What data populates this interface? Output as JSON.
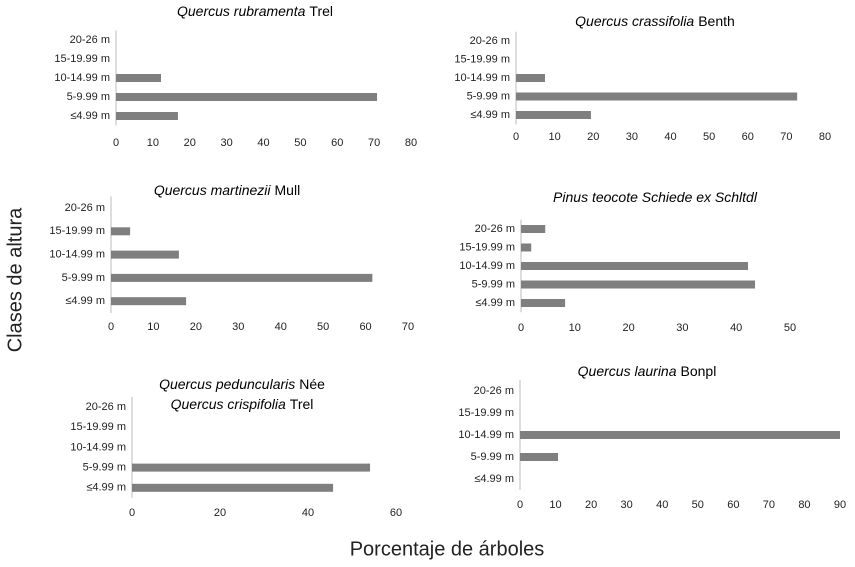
{
  "chart_data": [
    {
      "type": "barh",
      "title": [
        [
          {
            "text": "Quercus rubramenta",
            "italic": true
          },
          {
            "text": "Trel",
            "italic": false
          }
        ]
      ],
      "categories": [
        "20-26 m",
        "15-19.99 m",
        "10-14.99 m",
        "5-9.99 m",
        "≤4.99 m"
      ],
      "values": [
        0,
        0,
        12.2,
        70.8,
        16.8
      ],
      "color": "#7f7f7f",
      "xlim": [
        0,
        80
      ],
      "xticks": [
        0,
        10,
        20,
        30,
        40,
        50,
        60,
        70,
        80
      ]
    },
    {
      "type": "barh",
      "title": [
        [
          {
            "text": "Quercus crassifolia",
            "italic": true
          },
          {
            "text": "Benth",
            "italic": false
          }
        ]
      ],
      "categories": [
        "20-26 m",
        "15-19.99 m",
        "10-14.99 m",
        "5-9.99 m",
        "≤4.99 m"
      ],
      "values": [
        0,
        0,
        7.5,
        72.8,
        19.4
      ],
      "color": "#7f7f7f",
      "xlim": [
        0,
        80
      ],
      "xticks": [
        0,
        10,
        20,
        30,
        40,
        50,
        60,
        70,
        80
      ]
    },
    {
      "type": "barh",
      "title": [
        [
          {
            "text": "Quercus martinezii",
            "italic": true
          },
          {
            "text": "Mull",
            "italic": false
          }
        ]
      ],
      "categories": [
        "20-26 m",
        "15-19.99 m",
        "10-14.99 m",
        "5-9.99 m",
        "≤4.99 m"
      ],
      "values": [
        0,
        4.5,
        16,
        61.6,
        17.7
      ],
      "color": "#7f7f7f",
      "xlim": [
        0,
        70
      ],
      "xticks": [
        0,
        10,
        20,
        30,
        40,
        50,
        60,
        70
      ]
    },
    {
      "type": "barh",
      "title": [
        [
          {
            "text": "Pinus teocote Schiede ex Schltdl",
            "italic": true
          }
        ]
      ],
      "categories": [
        "20-26 m",
        "15-19.99 m",
        "10-14.99 m",
        "5-9.99 m",
        "≤4.99 m"
      ],
      "values": [
        4.5,
        1.9,
        42.2,
        43.5,
        8.2
      ],
      "color": "#7f7f7f",
      "xlim": [
        0,
        50
      ],
      "xticks": [
        0,
        10,
        20,
        30,
        40,
        50
      ]
    },
    {
      "type": "barh",
      "title": [
        [
          {
            "text": "Quercus peduncularis",
            "italic": true
          },
          {
            "text": "Née",
            "italic": false
          }
        ],
        [
          {
            "text": "Quercus crispifolia",
            "italic": true
          },
          {
            "text": "Trel",
            "italic": false
          }
        ]
      ],
      "categories": [
        "20-26 m",
        "15-19.99 m",
        "10-14.99 m",
        "5-9.99 m",
        "≤4.99 m"
      ],
      "values": [
        0,
        0,
        0,
        54.1,
        45.7
      ],
      "color": "#7f7f7f",
      "xlim": [
        0,
        60
      ],
      "xticks": [
        0,
        20,
        40,
        60
      ]
    },
    {
      "type": "barh",
      "title": [
        [
          {
            "text": "Quercus laurina",
            "italic": true
          },
          {
            "text": "Bonpl",
            "italic": false
          }
        ]
      ],
      "categories": [
        "20-26 m",
        "15-19.99 m",
        "10-14.99 m",
        "5-9.99 m",
        "≤4.99 m"
      ],
      "values": [
        0,
        0,
        90,
        10.7,
        0
      ],
      "color": "#7f7f7f",
      "xlim": [
        0,
        90
      ],
      "xticks": [
        0,
        10,
        20,
        30,
        40,
        50,
        60,
        70,
        80,
        90
      ]
    }
  ],
  "ylabel": "Clases de altura",
  "xlabel": "Porcentaje de árboles"
}
